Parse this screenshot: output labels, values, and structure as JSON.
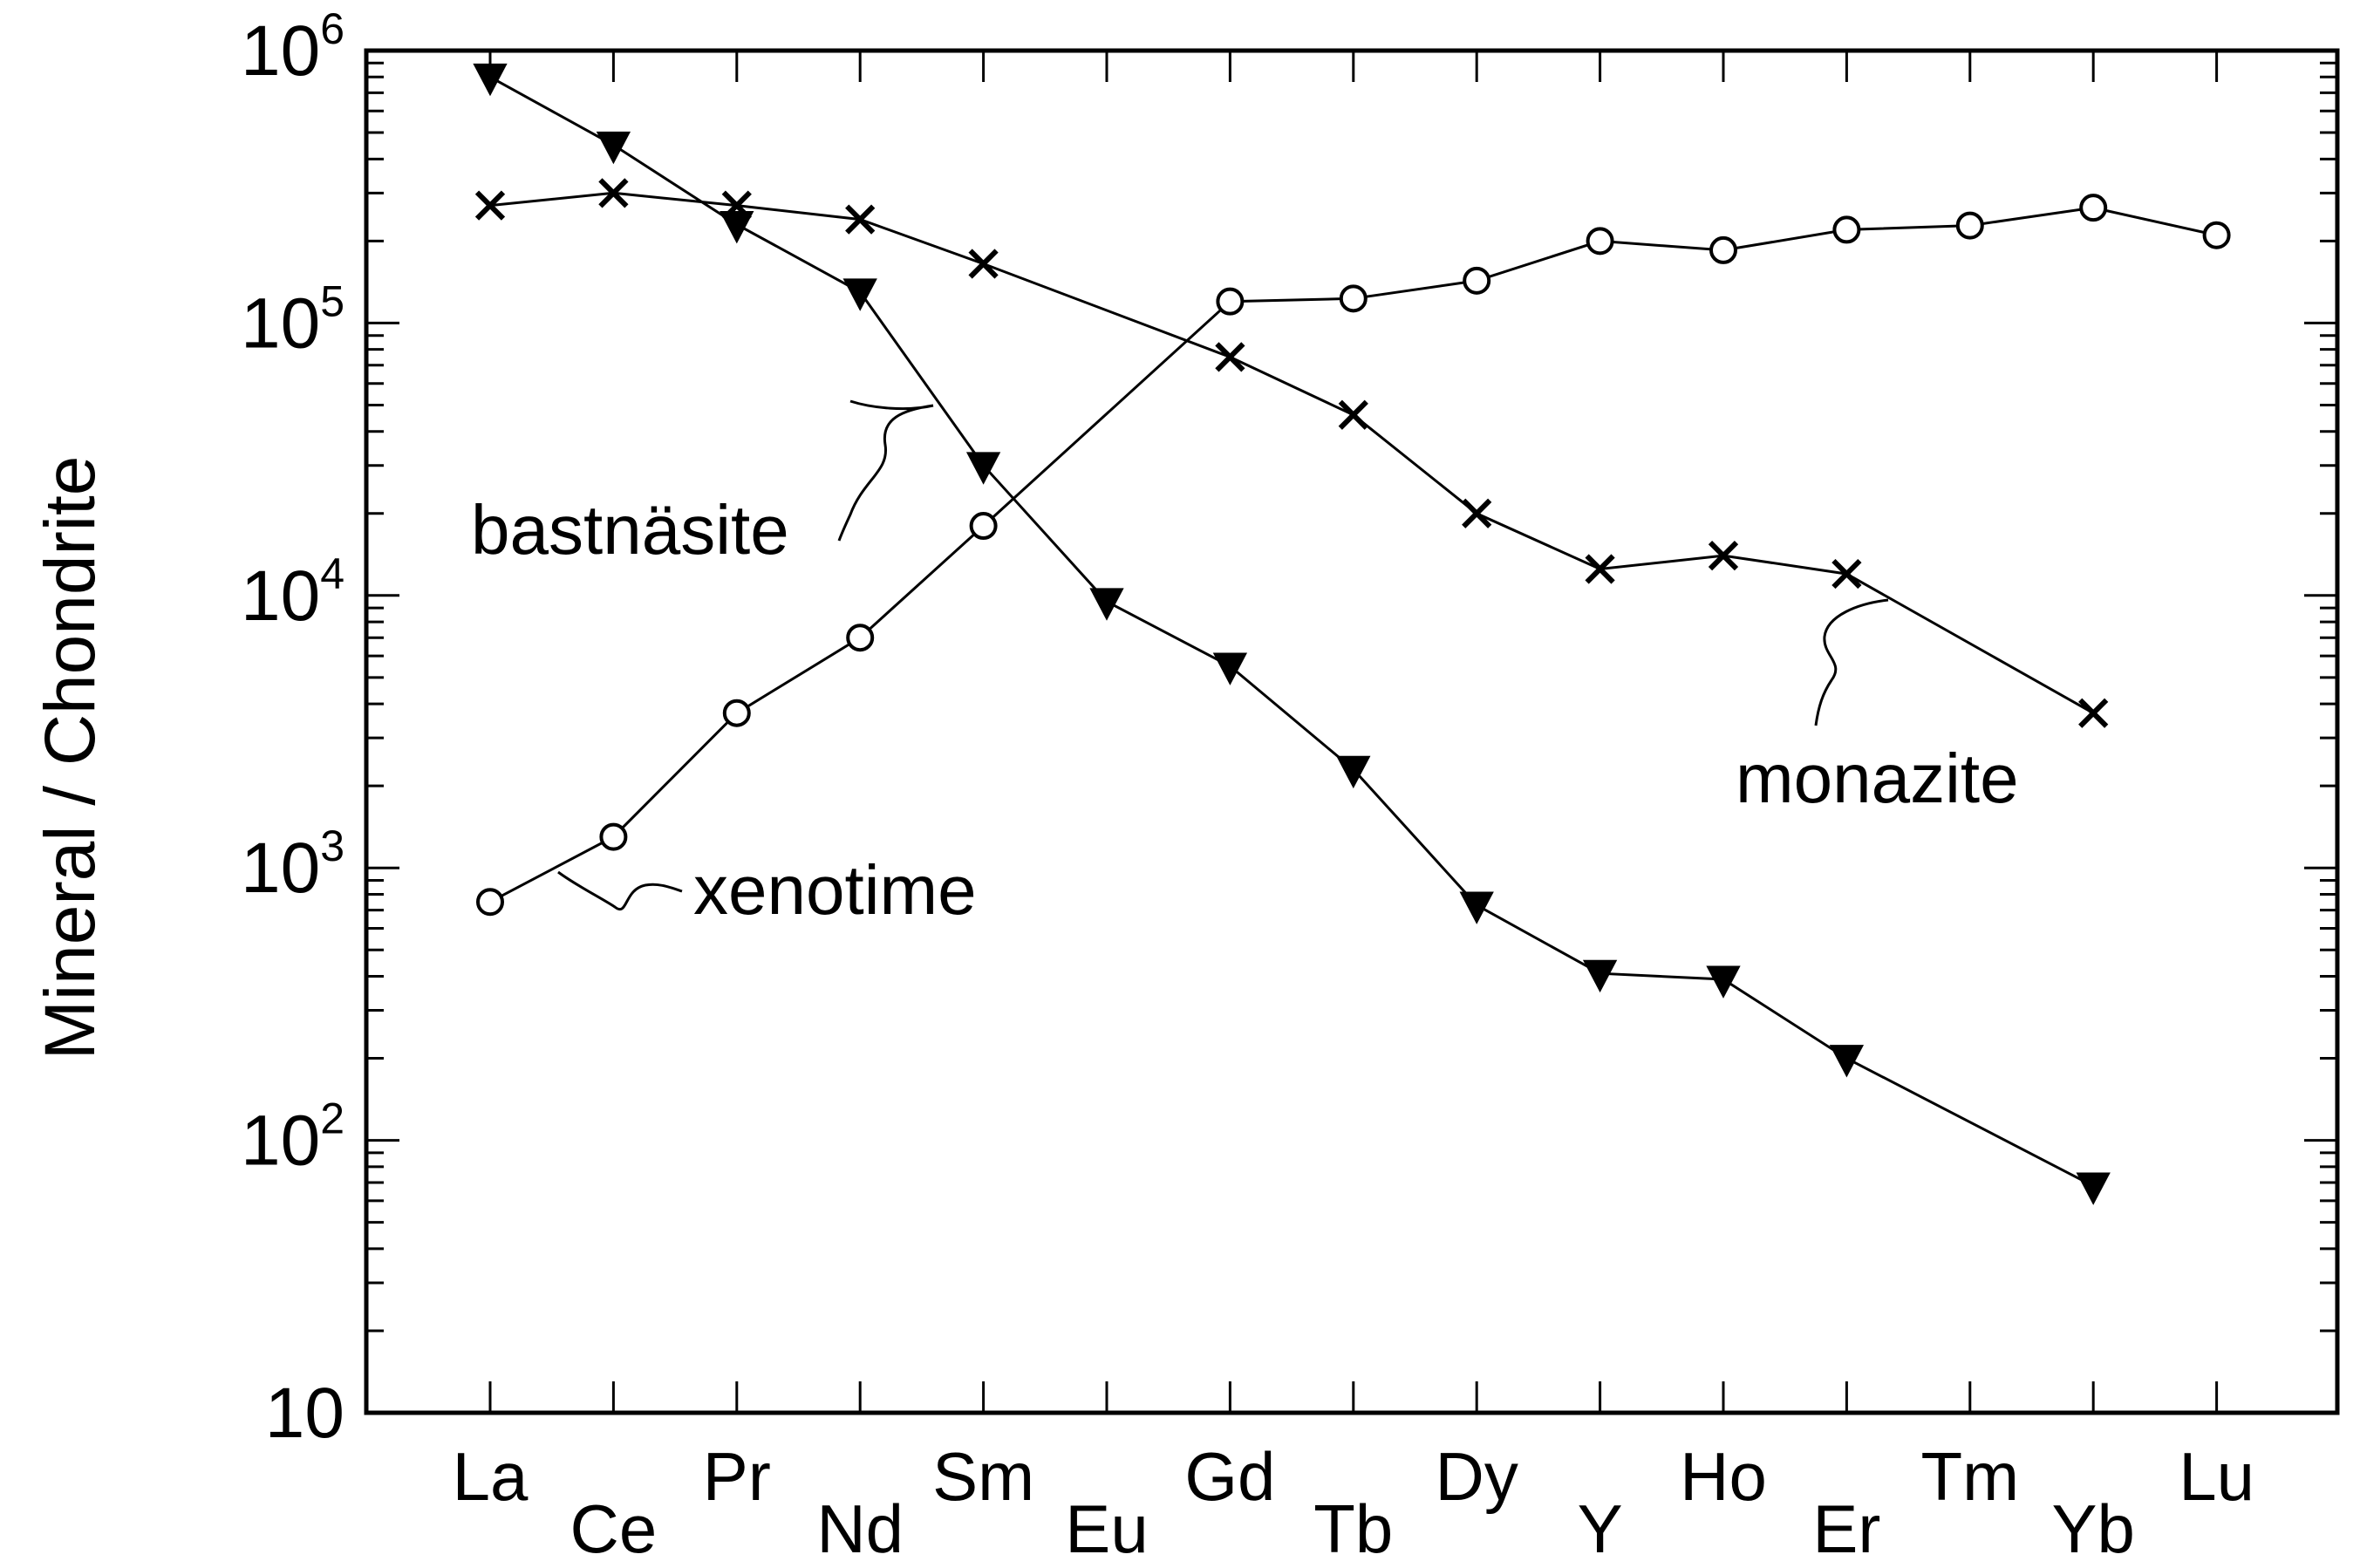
{
  "chart_data": {
    "type": "line",
    "title": "",
    "xlabel": "",
    "ylabel": "Mineral / Chondrite",
    "y_scale": "log",
    "ylim": [
      10,
      1000000
    ],
    "y_tick_labels": [
      {
        "value": 10,
        "base": "10",
        "exp": ""
      },
      {
        "value": 100,
        "base": "10",
        "exp": "2"
      },
      {
        "value": 1000,
        "base": "10",
        "exp": "3"
      },
      {
        "value": 10000,
        "base": "10",
        "exp": "4"
      },
      {
        "value": 100000,
        "base": "10",
        "exp": "5"
      },
      {
        "value": 1000000,
        "base": "10",
        "exp": "6"
      }
    ],
    "categories": [
      "La",
      "Ce",
      "Pr",
      "Nd",
      "Sm",
      "Eu",
      "Gd",
      "Tb",
      "Dy",
      "Y",
      "Ho",
      "Er",
      "Tm",
      "Yb",
      "Lu"
    ],
    "grid": false,
    "series": [
      {
        "name": "bastnäsite",
        "marker": "filled-triangle-down",
        "values": [
          800000,
          450000,
          230000,
          130000,
          30000,
          9500,
          5500,
          2300,
          730,
          410,
          390,
          200,
          null,
          68,
          null
        ]
      },
      {
        "name": "monazite",
        "marker": "x",
        "values": [
          270000,
          300000,
          270000,
          240000,
          165000,
          null,
          75000,
          46000,
          20000,
          12500,
          14000,
          12000,
          null,
          3700,
          null
        ]
      },
      {
        "name": "xenotime",
        "marker": "open-circle",
        "values": [
          750,
          1300,
          3700,
          7000,
          18000,
          null,
          120000,
          123000,
          143000,
          200000,
          185000,
          220000,
          228000,
          265000,
          210000
        ]
      }
    ]
  }
}
